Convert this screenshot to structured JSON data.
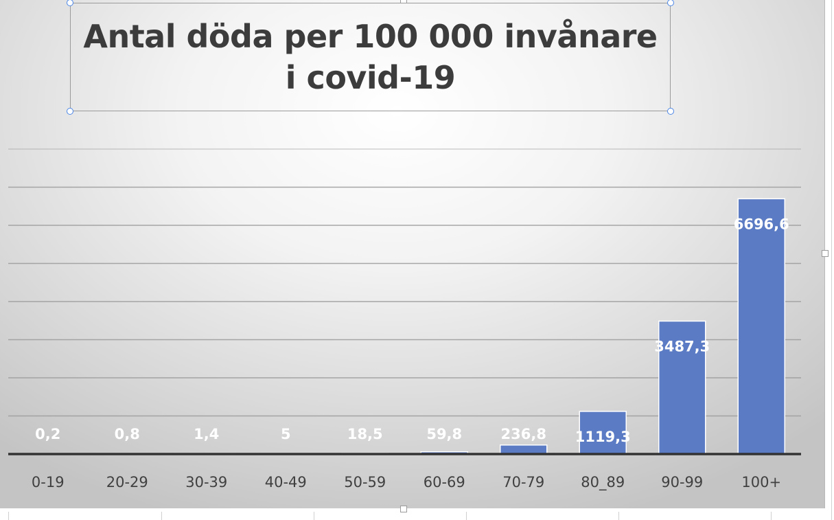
{
  "chart_data": {
    "type": "bar",
    "title": "Antal döda per 100 000 invånare i covid-19",
    "categories": [
      "0-19",
      "20-29",
      "30-39",
      "40-49",
      "50-59",
      "60-69",
      "70-79",
      "80_89",
      "90-99",
      "100+"
    ],
    "values": [
      0.2,
      0.8,
      1.4,
      5,
      18.5,
      59.8,
      236.8,
      1119.3,
      3487.3,
      6696.6
    ],
    "value_labels": [
      "0,2",
      "0,8",
      "1,4",
      "5",
      "18,5",
      "59,8",
      "236,8",
      "1119,3",
      "3487,3",
      "6696,6"
    ],
    "ylim": [
      0,
      8000
    ],
    "grid": true,
    "legend": "none",
    "colors": {
      "bar": "#5b7cc4",
      "bar_edge": "#ffffff",
      "axis": "#333333",
      "grid": "#9e9e9e"
    }
  }
}
